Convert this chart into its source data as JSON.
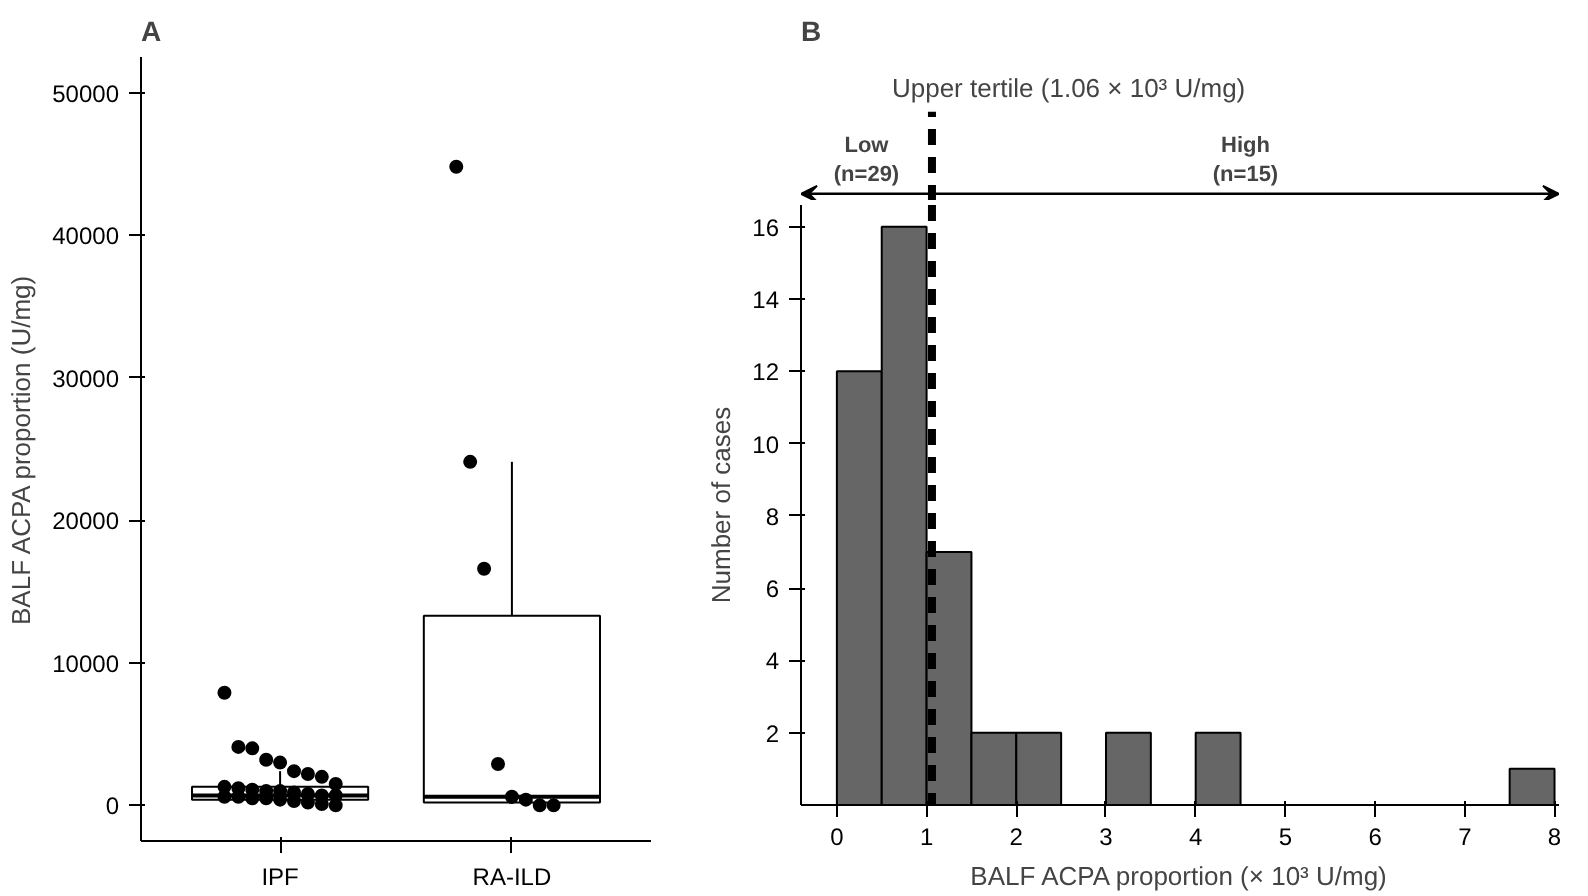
{
  "chart_data": [
    {
      "type": "box",
      "title": "A",
      "ylabel": "BALF ACPA proportion (U/mg)",
      "categories": [
        "IPF",
        "RA-ILD"
      ],
      "boxes": [
        {
          "low": 100,
          "q1": 400,
          "median": 700,
          "q3": 1300,
          "high": 2400
        },
        {
          "low": 100,
          "q1": 200,
          "median": 600,
          "q3": 13300,
          "high": 24100
        }
      ],
      "series": [
        {
          "type": "scatter",
          "color": "#000000",
          "x": [
            "IPF",
            "IPF",
            "IPF",
            "IPF",
            "IPF",
            "IPF",
            "IPF",
            "IPF",
            "IPF",
            "IPF",
            "IPF",
            "IPF",
            "IPF",
            "IPF",
            "IPF",
            "IPF",
            "IPF",
            "IPF",
            "IPF",
            "IPF",
            "IPF",
            "IPF",
            "IPF",
            "IPF",
            "IPF",
            "IPF",
            "IPF",
            "RA-ILD",
            "RA-ILD",
            "RA-ILD",
            "RA-ILD",
            "RA-ILD",
            "RA-ILD",
            "RA-ILD",
            "RA-ILD"
          ],
          "values": [
            7900,
            4100,
            4000,
            3200,
            3000,
            2400,
            2200,
            2000,
            1500,
            1300,
            1200,
            1100,
            1000,
            1000,
            900,
            800,
            700,
            700,
            600,
            600,
            500,
            500,
            400,
            300,
            200,
            100,
            0,
            44800,
            24100,
            16600,
            2900,
            600,
            400,
            0,
            0
          ]
        }
      ],
      "ylim": [
        -2500,
        52500
      ],
      "yticks": [
        0,
        10000,
        20000,
        30000,
        40000,
        50000
      ],
      "grid": false,
      "marker": "circle"
    },
    {
      "type": "histogram",
      "title": "B",
      "xlabel": "BALF ACPA proportion (× 10³ U/mg)",
      "ylabel": "Number of cases",
      "bins": [
        0,
        0.5,
        1,
        1.5,
        2,
        2.5,
        3,
        3.5,
        4,
        4.5,
        5,
        5.5,
        6,
        6.5,
        7,
        7.5,
        8
      ],
      "values": [
        12,
        16,
        7,
        2,
        2,
        0,
        2,
        0,
        2,
        0,
        0,
        0,
        0,
        0,
        0,
        1
      ],
      "color": "#666666",
      "xlim": [
        -0.4,
        8.05
      ],
      "xticks": [
        0,
        1,
        2,
        3,
        4,
        5,
        6,
        7,
        8
      ],
      "ylim": [
        0,
        16.6
      ],
      "yticks": [
        2,
        4,
        6,
        8,
        10,
        12,
        14,
        16
      ],
      "ref_lines": [
        {
          "axis": "x",
          "value": 1.06,
          "label": "Upper tertile (1.06 × 10³ U/mg)",
          "line_style": "dashed",
          "color": "#000000"
        }
      ],
      "annotations": [
        "Low\n(n=29)",
        "High\n(n=15)"
      ],
      "grid": false
    }
  ]
}
